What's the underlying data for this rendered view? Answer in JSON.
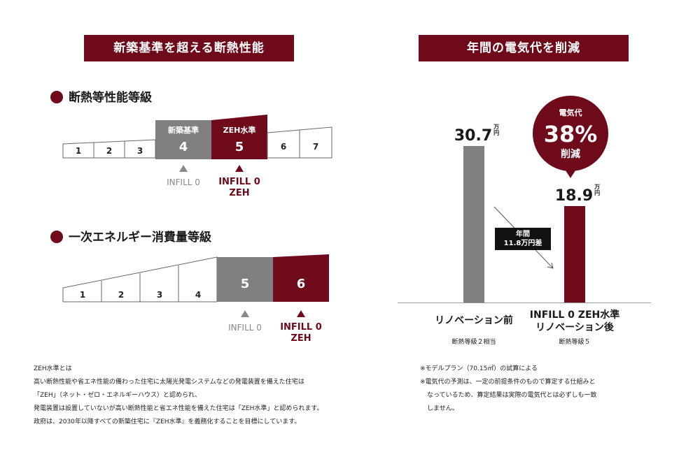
{
  "left": {
    "banner": "新築基準を超える断熱性能",
    "insulation": {
      "title": "断熱等性能等級",
      "grades": [
        "1",
        "2",
        "3",
        "4",
        "5",
        "6",
        "7"
      ],
      "highlight_gray": {
        "label": "新築基準",
        "value": "4"
      },
      "highlight_red": {
        "label": "ZEH水準",
        "value": "5"
      },
      "marker_gray": "INFILL 0",
      "marker_red_line1": "INFILL 0",
      "marker_red_line2": "ZEH"
    },
    "energy": {
      "title": "一次エネルギー消費量等級",
      "grades": [
        "1",
        "2",
        "3",
        "4",
        "5",
        "6"
      ],
      "marker_gray": "INFILL 0",
      "marker_red_line1": "INFILL 0",
      "marker_red_line2": "ZEH"
    },
    "notes": [
      "ZEH水準とは",
      "高い断熱性能や省エネ性能の備わった住宅に太陽光発電システムなどの発電装置を備えた住宅は",
      "「ZEH」（ネット・ゼロ・エネルギーハウス）と認められ、",
      "発電装置は設置していないが高い断熱性能と省エネ性能を備えた住宅は「ZEH水準」と認められます。",
      "政府は、2030年以降すべての新築住宅に『ZEH水準』を義務化することを目標にしています。"
    ]
  },
  "right": {
    "banner": "年間の電気代を削減",
    "unit_top": "万",
    "unit_bottom": "円",
    "reduction_badge": {
      "line1": "電気代",
      "line2": "38%",
      "line3": "削減"
    },
    "diff_label": {
      "line1": "年間",
      "line2": "11.8万円差"
    },
    "bars": [
      {
        "value_text": "30.7",
        "label_line1": "リノベーション前",
        "label_line2": "",
        "sub": "断熱等級２相当"
      },
      {
        "value_text": "18.9",
        "label_line1": "INFILL 0 ZEH水準",
        "label_line2": "リノベーション後",
        "sub": "断熱等級５"
      }
    ],
    "notes": [
      "※モデルプラン（70.15㎡）の試算による",
      "※電気代の予測は、一定の前提条件のもので算定する仕組みと",
      "なっているため、算定結果は実際の電気代とは必ずしも一致",
      "しません。"
    ]
  },
  "colors": {
    "accent": "#6e0a1a",
    "gray": "#808080"
  },
  "chart_data": {
    "type": "bar",
    "categories": [
      "リノベーション前",
      "INFILL 0 ZEH水準 リノベーション後"
    ],
    "values": [
      30.7,
      18.9
    ],
    "title": "年間の電気代を削減",
    "xlabel": "",
    "ylabel": "",
    "unit": "万円",
    "ylim": [
      0,
      35
    ]
  }
}
